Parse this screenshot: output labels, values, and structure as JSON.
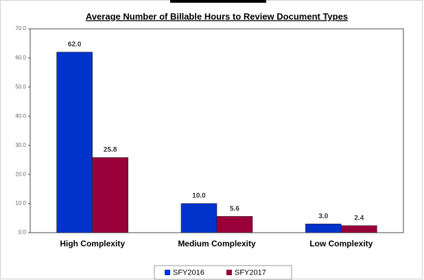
{
  "chart_data": {
    "type": "bar",
    "title": "Average Number of Billable Hours to Review Document Types",
    "categories": [
      "High Complexity",
      "Medium Complexity",
      "Low Complexity"
    ],
    "series": [
      {
        "name": "SFY2016",
        "color": "#0033cc",
        "values": [
          62,
          10,
          3
        ],
        "value_labels": [
          "62.0",
          "10.0",
          "3.0"
        ]
      },
      {
        "name": "SFY2017",
        "color": "#99003a",
        "values": [
          25.8,
          5.6,
          2.4
        ],
        "value_labels": [
          "25.8",
          "5.6",
          "2.4"
        ]
      }
    ],
    "ylim": [
      0,
      70
    ],
    "yticks": [
      {
        "value": 0,
        "label": "0.0"
      },
      {
        "value": 10,
        "label": "10.0"
      },
      {
        "value": 20,
        "label": "20.0"
      },
      {
        "value": 30,
        "label": "30.0"
      },
      {
        "value": 40,
        "label": "40.0"
      },
      {
        "value": 50,
        "label": "50.0"
      },
      {
        "value": 60,
        "label": "60.0"
      },
      {
        "value": 70,
        "label": "70.0"
      }
    ],
    "grid": false,
    "legend": "bottom"
  }
}
